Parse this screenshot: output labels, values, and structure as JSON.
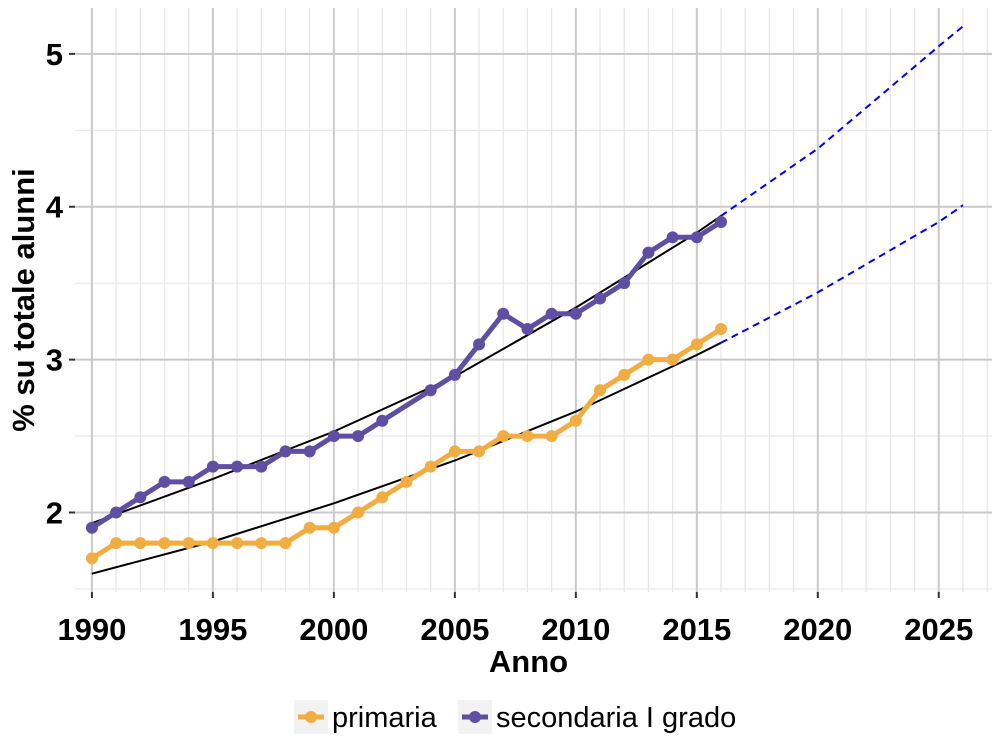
{
  "chart_data": {
    "type": "line",
    "xlabel": "Anno",
    "ylabel": "% su totale alunni",
    "xlim": [
      1989.3,
      2027.2
    ],
    "ylim": [
      1.48,
      5.3
    ],
    "x_ticks": [
      1990,
      1995,
      2000,
      2005,
      2010,
      2015,
      2020,
      2025
    ],
    "x_tick_labels": [
      "1990",
      "1995",
      "2000",
      "2005",
      "2010",
      "2015",
      "2020",
      "2025"
    ],
    "y_ticks": [
      2,
      3,
      4,
      5
    ],
    "y_tick_labels": [
      "2",
      "3",
      "4",
      "5"
    ],
    "grid": true,
    "legend_position": "bottom",
    "series": [
      {
        "name": "primaria",
        "color": "#F2AD42",
        "x": [
          1990,
          1991,
          1992,
          1993,
          1994,
          1995,
          1996,
          1997,
          1998,
          1999,
          2000,
          2001,
          2002,
          2003,
          2004,
          2005,
          2006,
          2007,
          2008,
          2009,
          2010,
          2011,
          2012,
          2013,
          2014,
          2015,
          2016
        ],
        "values": [
          1.7,
          1.8,
          1.8,
          1.8,
          1.8,
          1.8,
          1.8,
          1.8,
          1.8,
          1.9,
          1.9,
          2.0,
          2.1,
          2.2,
          2.3,
          2.4,
          2.4,
          2.5,
          2.5,
          2.5,
          2.6,
          2.8,
          2.9,
          3.0,
          3.0,
          3.1,
          3.2
        ]
      },
      {
        "name": "secondaria I grado",
        "color": "#5E4FA2",
        "x": [
          1990,
          1991,
          1992,
          1993,
          1994,
          1995,
          1996,
          1997,
          1998,
          1999,
          2000,
          2001,
          2002,
          2004,
          2005,
          2006,
          2007,
          2008,
          2009,
          2010,
          2011,
          2012,
          2013,
          2014,
          2015,
          2016
        ],
        "values": [
          1.9,
          2.0,
          2.1,
          2.2,
          2.2,
          2.3,
          2.3,
          2.3,
          2.4,
          2.4,
          2.5,
          2.5,
          2.6,
          2.8,
          2.9,
          3.1,
          3.3,
          3.2,
          3.3,
          3.3,
          3.4,
          3.5,
          3.7,
          3.8,
          3.8,
          3.9
        ]
      }
    ],
    "trend_lines": [
      {
        "fit_color": "#000000",
        "projection_color": "#0000EE",
        "x": [
          1990,
          1995,
          2000,
          2005,
          2010,
          2015,
          2016,
          2020,
          2025,
          2026
        ],
        "values": [
          1.6,
          1.81,
          2.06,
          2.34,
          2.66,
          3.03,
          3.11,
          3.44,
          3.9,
          4.01
        ]
      },
      {
        "fit_color": "#000000",
        "projection_color": "#0000EE",
        "x": [
          1990,
          1995,
          2000,
          2005,
          2010,
          2015,
          2016,
          2020,
          2025,
          2026
        ],
        "values": [
          1.93,
          2.22,
          2.53,
          2.89,
          3.34,
          3.83,
          3.94,
          4.38,
          5.05,
          5.18
        ]
      }
    ]
  }
}
